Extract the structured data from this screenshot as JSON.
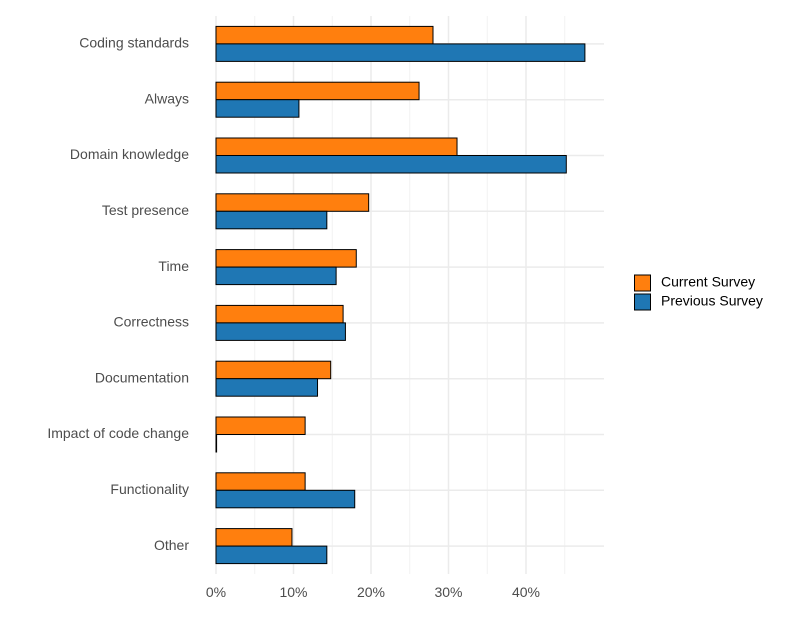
{
  "chart_data": {
    "type": "bar",
    "orientation": "horizontal",
    "title": "",
    "xlabel": "",
    "ylabel": "",
    "xlim": [
      0,
      50
    ],
    "x_ticks": [
      0,
      10,
      20,
      30,
      40
    ],
    "x_tick_labels": [
      "0%",
      "10%",
      "20%",
      "30%",
      "40%"
    ],
    "categories": [
      "Coding standards",
      "Always",
      "Domain knowledge",
      "Test presence",
      "Time",
      "Correctness",
      "Documentation",
      "Impact of code change",
      "Functionality",
      "Other"
    ],
    "series": [
      {
        "name": "Current Survey",
        "color": "#ff7f0e",
        "values": [
          28.0,
          26.2,
          31.1,
          19.7,
          18.1,
          16.4,
          14.8,
          11.5,
          11.5,
          9.8
        ]
      },
      {
        "name": "Previous Survey",
        "color": "#1f77b4",
        "values": [
          47.6,
          10.7,
          45.2,
          14.3,
          15.5,
          16.7,
          13.1,
          0.0,
          17.9,
          14.3
        ]
      }
    ],
    "legend": {
      "position": "right",
      "entries": [
        "Current Survey",
        "Previous Survey"
      ]
    },
    "grid": true
  }
}
